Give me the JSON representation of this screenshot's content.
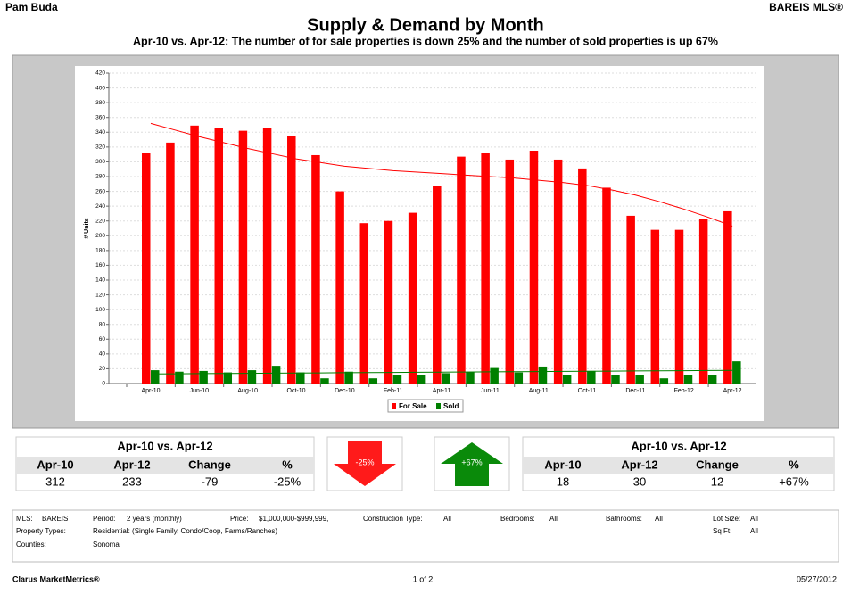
{
  "header": {
    "left": "Pam Buda",
    "right": "BAREIS MLS®"
  },
  "chart_data": {
    "type": "bar",
    "title": "Supply & Demand by Month",
    "subtitle": "Apr-10 vs. Apr-12:  The number of for sale properties is down 25% and the number of sold properties is up 67%",
    "y_label": "# Units",
    "categories": [
      "Apr-10",
      null,
      "Jun-10",
      null,
      "Aug-10",
      null,
      "Oct-10",
      null,
      "Dec-10",
      null,
      "Feb-11",
      null,
      "Apr-11",
      null,
      "Jun-11",
      null,
      "Aug-11",
      null,
      "Oct-11",
      null,
      "Dec-11",
      null,
      "Feb-12",
      null,
      "Apr-12"
    ],
    "series": [
      {
        "name": "For Sale",
        "color": "#ff0000",
        "values": [
          312,
          326,
          349,
          346,
          342,
          346,
          335,
          309,
          260,
          217,
          220,
          231,
          267,
          307,
          312,
          303,
          315,
          303,
          291,
          265,
          227,
          208,
          208,
          223,
          233
        ],
        "trend": [
          352,
          343,
          334,
          326,
          318,
          311,
          304,
          299,
          294,
          291,
          288,
          286,
          284,
          282,
          280,
          278,
          275,
          272,
          268,
          262,
          255,
          246,
          236,
          225,
          213
        ]
      },
      {
        "name": "Sold",
        "color": "#008000",
        "values": [
          18,
          16,
          17,
          15,
          18,
          24,
          15,
          7,
          16,
          7,
          12,
          12,
          14,
          16,
          21,
          15,
          23,
          12,
          17,
          11,
          11,
          7,
          12,
          11,
          30
        ],
        "trend": [
          13.0,
          13.2,
          13.4,
          13.6,
          13.8,
          14.0,
          14.2,
          14.4,
          14.6,
          14.8,
          15.0,
          15.2,
          15.4,
          15.6,
          15.8,
          16.0,
          16.2,
          16.4,
          16.6,
          16.8,
          17.0,
          17.2,
          17.4,
          17.6,
          17.8
        ]
      }
    ],
    "ylim": [
      0,
      420
    ],
    "yticks": [
      0,
      20,
      40,
      60,
      80,
      100,
      120,
      140,
      160,
      180,
      200,
      220,
      240,
      260,
      280,
      300,
      320,
      340,
      360,
      380,
      400,
      420
    ],
    "grid": true,
    "legend": "bottom"
  },
  "summary": {
    "for_sale": {
      "title": "Apr-10 vs. Apr-12",
      "columns": [
        "Apr-10",
        "Apr-12",
        "Change",
        "%"
      ],
      "values": [
        "312",
        "233",
        "-79",
        "-25%"
      ],
      "arrow": "-25%"
    },
    "sold": {
      "title": "Apr-10 vs. Apr-12",
      "columns": [
        "Apr-10",
        "Apr-12",
        "Change",
        "%"
      ],
      "values": [
        "18",
        "30",
        "12",
        "+67%"
      ],
      "arrow": "+67%"
    }
  },
  "filters": [
    {
      "label": "MLS:",
      "value": "BAREIS"
    },
    {
      "label": "Period:",
      "value": "2 years (monthly)"
    },
    {
      "label": "Price:",
      "value": "$1,000,000-$999,999,"
    },
    {
      "label": "Construction Type:",
      "value": "All"
    },
    {
      "label": "Bedrooms:",
      "value": "All"
    },
    {
      "label": "Bathrooms:",
      "value": "All"
    },
    {
      "label": "Lot Size:",
      "value": "All"
    },
    {
      "label": "Property Types:",
      "value": "Residential: (Single Family, Condo/Coop, Farms/Ranches)"
    },
    {
      "label": "Sq Ft:",
      "value": "All"
    },
    {
      "label": "Counties:",
      "value": "Sonoma"
    }
  ],
  "footer": {
    "left": "Clarus MarketMetrics®",
    "center": "1 of 2",
    "right": "05/27/2012"
  }
}
